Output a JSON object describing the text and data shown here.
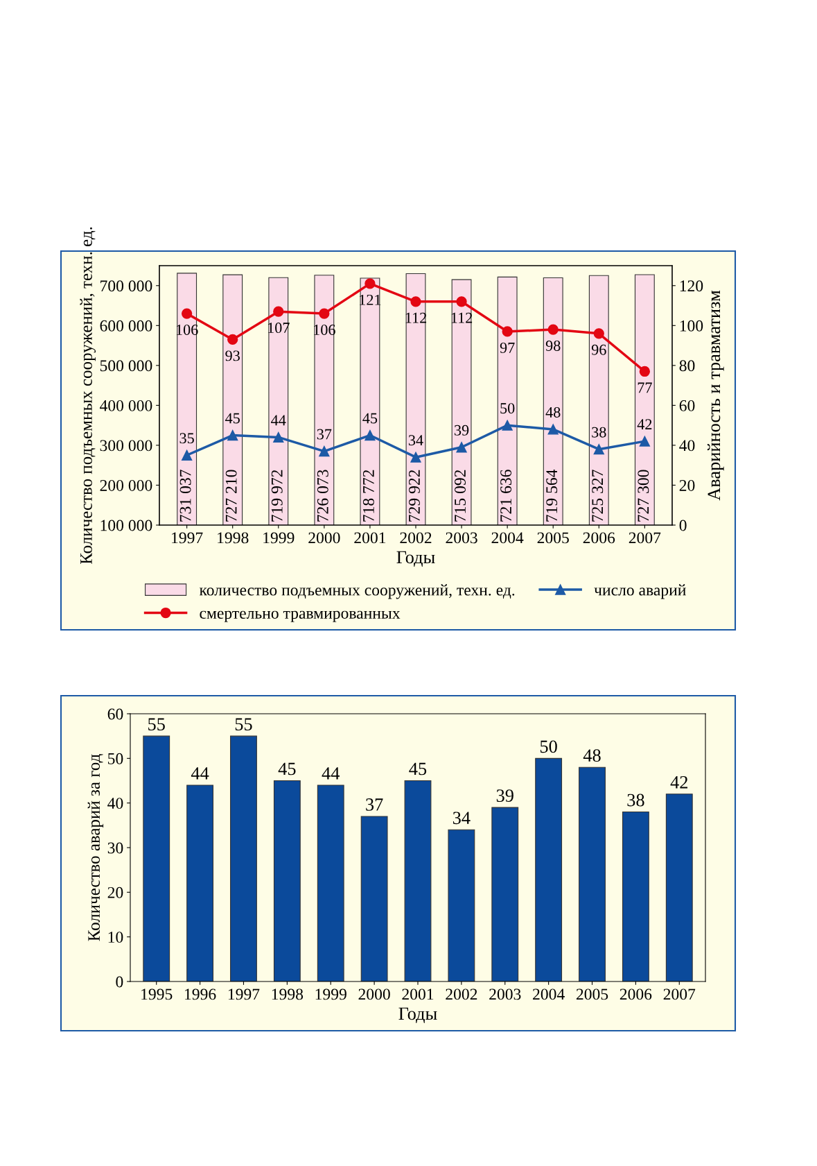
{
  "chart_data": [
    {
      "type": "bar",
      "xlabel": "Годы",
      "ylabel": "Количество подъемных сооружений, техн. ед.",
      "y2label": "Аварийность и травматизм",
      "categories": [
        "1997",
        "1998",
        "1999",
        "2000",
        "2001",
        "2002",
        "2003",
        "2004",
        "2005",
        "2006",
        "2007"
      ],
      "series": [
        {
          "name": "количество подъемных сооружений, техн. ед.",
          "type": "bar",
          "color": "#fadbe7",
          "values": [
            731037,
            727210,
            719972,
            726073,
            718772,
            729922,
            715092,
            721636,
            719564,
            725327,
            727300
          ],
          "value_labels": [
            "731 037",
            "727 210",
            "719 972",
            "726 073",
            "718 772",
            "729 922",
            "715 092",
            "721 636",
            "719 564",
            "725 327",
            "727 300"
          ]
        },
        {
          "name": "смертельно травмированных",
          "type": "line",
          "axis": "y2",
          "marker": "circle",
          "color": "#e30613",
          "values": [
            106,
            93,
            107,
            106,
            121,
            112,
            112,
            97,
            98,
            96,
            77
          ]
        },
        {
          "name": "число аварий",
          "type": "line",
          "axis": "y2",
          "marker": "triangle",
          "color": "#1d5aa6",
          "values": [
            35,
            45,
            44,
            37,
            45,
            34,
            39,
            50,
            48,
            38,
            42
          ]
        }
      ],
      "ylim": [
        100000,
        750000
      ],
      "yticks": [
        {
          "value": 100000,
          "label": "100 000"
        },
        {
          "value": 200000,
          "label": "200 000"
        },
        {
          "value": 300000,
          "label": "300 000"
        },
        {
          "value": 400000,
          "label": "400 000"
        },
        {
          "value": 500000,
          "label": "500 000"
        },
        {
          "value": 600000,
          "label": "600 000"
        },
        {
          "value": 700000,
          "label": "700 000"
        }
      ],
      "y2lim": [
        0,
        130
      ],
      "y2ticks": [
        0,
        20,
        40,
        60,
        80,
        100,
        120
      ],
      "data_labels": true,
      "legend": "bottom",
      "grid": false
    },
    {
      "type": "bar",
      "xlabel": "Годы",
      "ylabel": "Количество аварий за год",
      "categories": [
        "1995",
        "1996",
        "1997",
        "1998",
        "1999",
        "2000",
        "2001",
        "2002",
        "2003",
        "2004",
        "2005",
        "2006",
        "2007"
      ],
      "series": [
        {
          "color": "#0b4a9b",
          "values": [
            55,
            44,
            55,
            45,
            44,
            37,
            45,
            34,
            39,
            50,
            48,
            38,
            42
          ]
        }
      ],
      "ylim": [
        0,
        60
      ],
      "yticks": [
        0,
        10,
        20,
        30,
        40,
        50,
        60
      ],
      "data_labels": true,
      "legend": false,
      "grid": false
    }
  ]
}
